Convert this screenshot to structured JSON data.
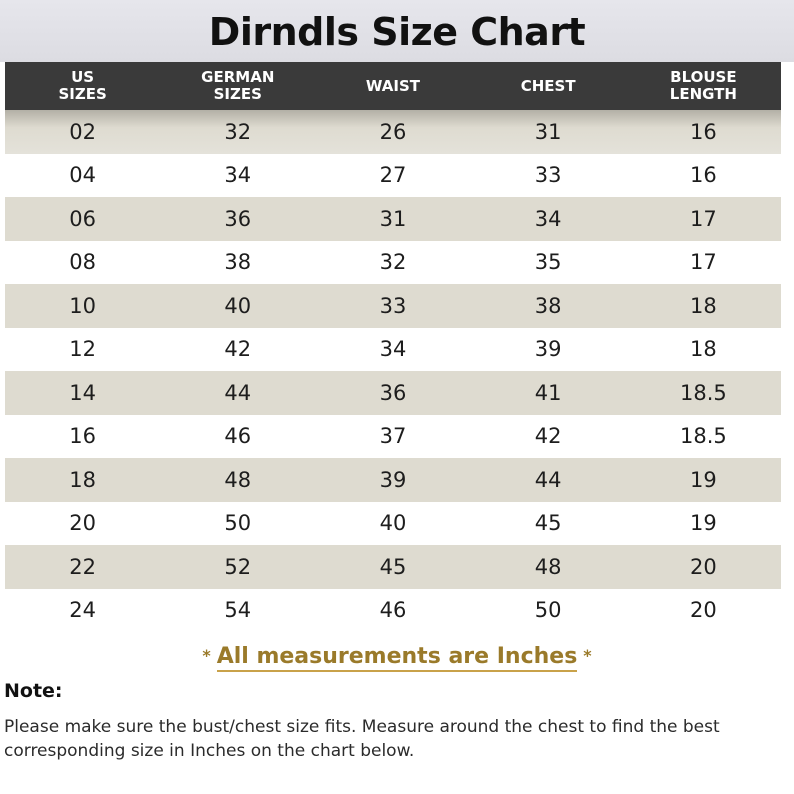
{
  "title": "Dirndls Size Chart",
  "table": {
    "headers": [
      {
        "line1": "US",
        "line2": "SIZES"
      },
      {
        "line1": "GERMAN",
        "line2": "SIZES"
      },
      {
        "line1": "WAIST",
        "line2": ""
      },
      {
        "line1": "CHEST",
        "line2": ""
      },
      {
        "line1": "BLOUSE",
        "line2": "LENGTH"
      }
    ],
    "rows": [
      [
        "02",
        "32",
        "26",
        "31",
        "16"
      ],
      [
        "04",
        "34",
        "27",
        "33",
        "16"
      ],
      [
        "06",
        "36",
        "31",
        "34",
        "17"
      ],
      [
        "08",
        "38",
        "32",
        "35",
        "17"
      ],
      [
        "10",
        "40",
        "33",
        "38",
        "18"
      ],
      [
        "12",
        "42",
        "34",
        "39",
        "18"
      ],
      [
        "14",
        "44",
        "36",
        "41",
        "18.5"
      ],
      [
        "16",
        "46",
        "37",
        "42",
        "18.5"
      ],
      [
        "18",
        "48",
        "39",
        "44",
        "19"
      ],
      [
        "20",
        "50",
        "40",
        "45",
        "19"
      ],
      [
        "22",
        "52",
        "45",
        "48",
        "20"
      ],
      [
        "24",
        "54",
        "46",
        "50",
        "20"
      ]
    ]
  },
  "units_note": {
    "star": "*",
    "text": "All measurements are Inches"
  },
  "note": {
    "label": "Note:",
    "text": "Please make sure the bust/chest size fits. Measure around the chest to find the best corresponding size in Inches on the chart below."
  },
  "colors": {
    "header_bg": "#3a3a3a",
    "stripe_bg": "#dedbd0",
    "accent_gold": "#9a7a2a"
  }
}
